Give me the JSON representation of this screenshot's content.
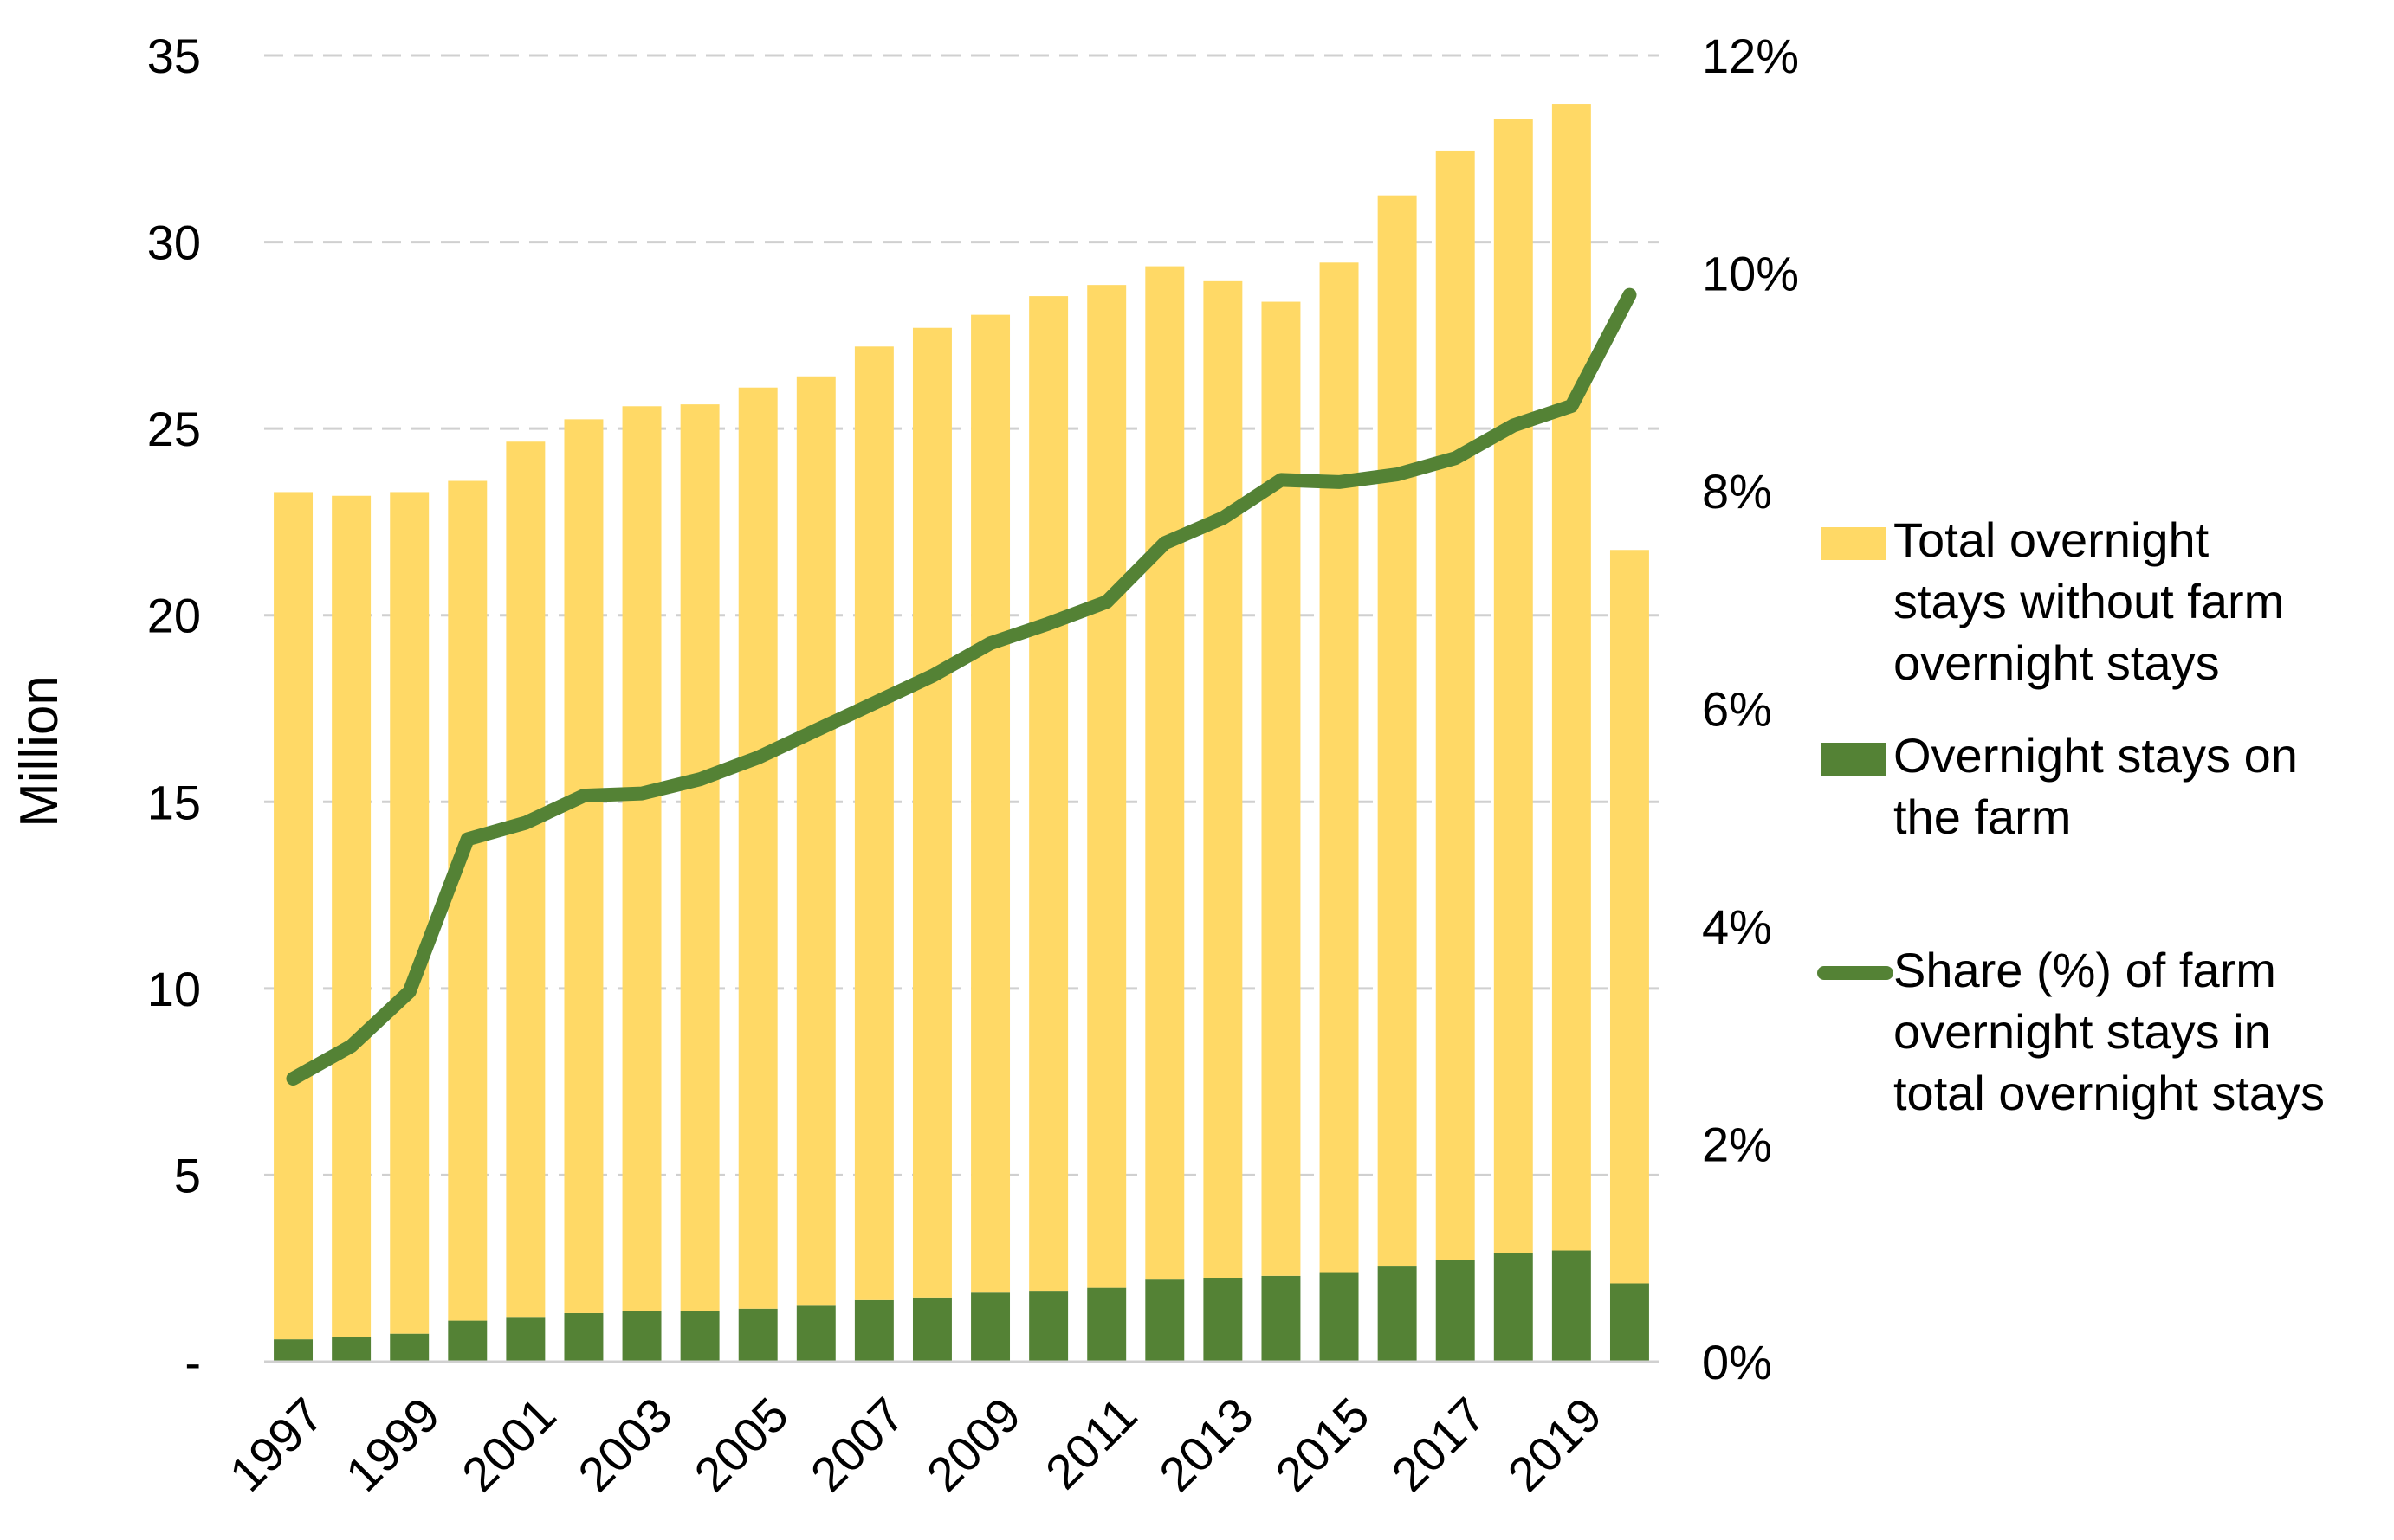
{
  "chart_data": {
    "type": "bar",
    "stacked": true,
    "title": "",
    "xlabel": "",
    "ylabel": "Million",
    "ylim": [
      0,
      35
    ],
    "y2lim": [
      0,
      12
    ],
    "y_ticks": [
      "-",
      "5",
      "10",
      "15",
      "20",
      "25",
      "30",
      "35"
    ],
    "y2_ticks": [
      "0%",
      "2%",
      "4%",
      "6%",
      "8%",
      "10%",
      "12%"
    ],
    "categories": [
      1997,
      1998,
      1999,
      2000,
      2001,
      2002,
      2003,
      2004,
      2005,
      2006,
      2007,
      2008,
      2009,
      2010,
      2011,
      2012,
      2013,
      2014,
      2015,
      2016,
      2017,
      2018,
      2019,
      2020
    ],
    "x_tick_labels": [
      "1997",
      "1999",
      "2001",
      "2003",
      "2005",
      "2007",
      "2009",
      "2011",
      "2013",
      "2015",
      "2017",
      "2019"
    ],
    "series": [
      {
        "name": "Overnight stays on the farm",
        "type": "bar",
        "color": "#548235",
        "values": [
          0.6,
          0.65,
          0.75,
          1.1,
          1.2,
          1.3,
          1.35,
          1.35,
          1.42,
          1.5,
          1.65,
          1.72,
          1.85,
          1.9,
          1.98,
          2.2,
          2.25,
          2.3,
          2.4,
          2.55,
          2.72,
          2.9,
          2.98,
          2.1
        ]
      },
      {
        "name": "Total overnight stays without farm overnight stays",
        "type": "bar",
        "color": "#FFD966",
        "values": [
          22.7,
          22.55,
          22.55,
          22.5,
          23.45,
          23.95,
          24.25,
          24.3,
          24.68,
          24.9,
          25.55,
          25.98,
          26.2,
          26.65,
          26.87,
          27.15,
          26.7,
          26.1,
          27.05,
          28.7,
          29.73,
          30.4,
          30.72,
          19.65
        ]
      },
      {
        "name": "Share (%) of farm overnight stays in total overnight stays",
        "type": "line",
        "axis": "secondary",
        "color": "#548235",
        "values": [
          2.6,
          2.9,
          3.4,
          4.8,
          4.95,
          5.2,
          5.22,
          5.35,
          5.55,
          5.8,
          6.05,
          6.3,
          6.6,
          6.78,
          6.98,
          7.52,
          7.75,
          8.1,
          8.08,
          8.15,
          8.3,
          8.6,
          8.78,
          9.8
        ]
      }
    ],
    "legend": {
      "position": "right",
      "items": [
        {
          "series": "Total overnight stays without farm overnight stays",
          "lines": [
            "Total overnight",
            "stays without farm",
            "overnight stays"
          ],
          "color": "#FFD966",
          "marker": "box"
        },
        {
          "series": "Overnight stays on the farm",
          "lines": [
            "Overnight stays on",
            "the farm"
          ],
          "color": "#548235",
          "marker": "box"
        },
        {
          "series": "Share (%) of farm overnight stays in total overnight stays",
          "lines": [
            "Share (%) of farm",
            "overnight stays in",
            "total overnight stays"
          ],
          "color": "#548235",
          "marker": "line"
        }
      ]
    }
  }
}
